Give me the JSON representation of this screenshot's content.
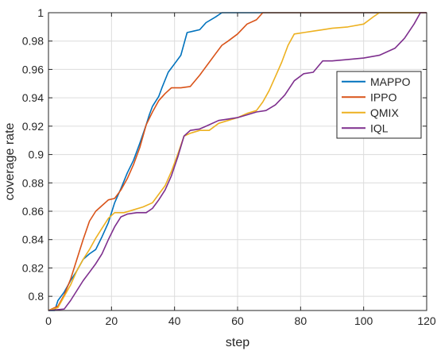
{
  "chart_data": {
    "type": "line",
    "xlabel": "step",
    "ylabel": "coverage rate",
    "xlim": [
      0,
      120
    ],
    "ylim": [
      0.79,
      1.0
    ],
    "xticks": [
      "0",
      "20",
      "40",
      "60",
      "80",
      "100",
      "120"
    ],
    "yticks": [
      "0.8",
      "0.82",
      "0.84",
      "0.86",
      "0.88",
      "0.9",
      "0.92",
      "0.94",
      "0.96",
      "0.98",
      "1"
    ],
    "grid": true,
    "legend_position": "top-right",
    "series": [
      {
        "name": "MAPPO",
        "color": "#0072BD",
        "points": [
          [
            0,
            0.79
          ],
          [
            2,
            0.79
          ],
          [
            3,
            0.797
          ],
          [
            5,
            0.803
          ],
          [
            7,
            0.811
          ],
          [
            9,
            0.818
          ],
          [
            11,
            0.826
          ],
          [
            13,
            0.83
          ],
          [
            15,
            0.833
          ],
          [
            17,
            0.842
          ],
          [
            19,
            0.852
          ],
          [
            21,
            0.866
          ],
          [
            23,
            0.876
          ],
          [
            25,
            0.887
          ],
          [
            27,
            0.896
          ],
          [
            29,
            0.908
          ],
          [
            31,
            0.921
          ],
          [
            32,
            0.928
          ],
          [
            33,
            0.934
          ],
          [
            35,
            0.941
          ],
          [
            36,
            0.947
          ],
          [
            38,
            0.958
          ],
          [
            40,
            0.964
          ],
          [
            42,
            0.97
          ],
          [
            44,
            0.986
          ],
          [
            46,
            0.987
          ],
          [
            48,
            0.988
          ],
          [
            50,
            0.993
          ],
          [
            53,
            0.997
          ],
          [
            55,
            1.0
          ],
          [
            120,
            1.0
          ]
        ]
      },
      {
        "name": "IPPO",
        "color": "#D95319",
        "points": [
          [
            0,
            0.79
          ],
          [
            3,
            0.793
          ],
          [
            5,
            0.801
          ],
          [
            7,
            0.812
          ],
          [
            9,
            0.826
          ],
          [
            11,
            0.84
          ],
          [
            13,
            0.853
          ],
          [
            15,
            0.86
          ],
          [
            17,
            0.864
          ],
          [
            19,
            0.868
          ],
          [
            21,
            0.869
          ],
          [
            23,
            0.875
          ],
          [
            25,
            0.883
          ],
          [
            27,
            0.893
          ],
          [
            29,
            0.905
          ],
          [
            31,
            0.921
          ],
          [
            33,
            0.93
          ],
          [
            35,
            0.938
          ],
          [
            37,
            0.943
          ],
          [
            39,
            0.947
          ],
          [
            42,
            0.947
          ],
          [
            45,
            0.948
          ],
          [
            48,
            0.956
          ],
          [
            51,
            0.965
          ],
          [
            53,
            0.971
          ],
          [
            55,
            0.977
          ],
          [
            57,
            0.98
          ],
          [
            60,
            0.985
          ],
          [
            63,
            0.992
          ],
          [
            66,
            0.995
          ],
          [
            68,
            1.0
          ],
          [
            120,
            1.0
          ]
        ]
      },
      {
        "name": "QMIX",
        "color": "#EDB120",
        "points": [
          [
            0,
            0.79
          ],
          [
            3,
            0.792
          ],
          [
            5,
            0.8
          ],
          [
            7,
            0.808
          ],
          [
            9,
            0.818
          ],
          [
            11,
            0.826
          ],
          [
            13,
            0.833
          ],
          [
            15,
            0.841
          ],
          [
            17,
            0.848
          ],
          [
            19,
            0.855
          ],
          [
            21,
            0.859
          ],
          [
            24,
            0.859
          ],
          [
            27,
            0.861
          ],
          [
            30,
            0.863
          ],
          [
            33,
            0.866
          ],
          [
            35,
            0.872
          ],
          [
            37,
            0.878
          ],
          [
            39,
            0.888
          ],
          [
            41,
            0.9
          ],
          [
            43,
            0.913
          ],
          [
            45,
            0.915
          ],
          [
            48,
            0.917
          ],
          [
            51,
            0.917
          ],
          [
            54,
            0.922
          ],
          [
            57,
            0.924
          ],
          [
            60,
            0.926
          ],
          [
            63,
            0.929
          ],
          [
            66,
            0.931
          ],
          [
            68,
            0.937
          ],
          [
            70,
            0.945
          ],
          [
            72,
            0.955
          ],
          [
            74,
            0.965
          ],
          [
            76,
            0.977
          ],
          [
            78,
            0.985
          ],
          [
            81,
            0.986
          ],
          [
            84,
            0.987
          ],
          [
            87,
            0.988
          ],
          [
            90,
            0.989
          ],
          [
            95,
            0.99
          ],
          [
            100,
            0.992
          ],
          [
            103,
            0.997
          ],
          [
            105,
            1.0
          ],
          [
            120,
            1.0
          ]
        ]
      },
      {
        "name": "IQL",
        "color": "#7E2F8E",
        "points": [
          [
            0,
            0.79
          ],
          [
            5,
            0.791
          ],
          [
            7,
            0.797
          ],
          [
            9,
            0.804
          ],
          [
            11,
            0.811
          ],
          [
            13,
            0.817
          ],
          [
            15,
            0.823
          ],
          [
            17,
            0.83
          ],
          [
            19,
            0.84
          ],
          [
            21,
            0.849
          ],
          [
            23,
            0.856
          ],
          [
            25,
            0.858
          ],
          [
            28,
            0.859
          ],
          [
            31,
            0.859
          ],
          [
            33,
            0.862
          ],
          [
            35,
            0.868
          ],
          [
            37,
            0.875
          ],
          [
            39,
            0.885
          ],
          [
            41,
            0.898
          ],
          [
            43,
            0.913
          ],
          [
            45,
            0.917
          ],
          [
            48,
            0.918
          ],
          [
            51,
            0.921
          ],
          [
            54,
            0.924
          ],
          [
            57,
            0.925
          ],
          [
            60,
            0.926
          ],
          [
            63,
            0.928
          ],
          [
            66,
            0.93
          ],
          [
            69,
            0.931
          ],
          [
            72,
            0.935
          ],
          [
            75,
            0.942
          ],
          [
            78,
            0.952
          ],
          [
            81,
            0.957
          ],
          [
            84,
            0.958
          ],
          [
            87,
            0.966
          ],
          [
            90,
            0.966
          ],
          [
            95,
            0.967
          ],
          [
            100,
            0.968
          ],
          [
            105,
            0.97
          ],
          [
            110,
            0.975
          ],
          [
            113,
            0.982
          ],
          [
            116,
            0.992
          ],
          [
            118,
            1.0
          ],
          [
            120,
            1.0
          ]
        ]
      }
    ]
  }
}
